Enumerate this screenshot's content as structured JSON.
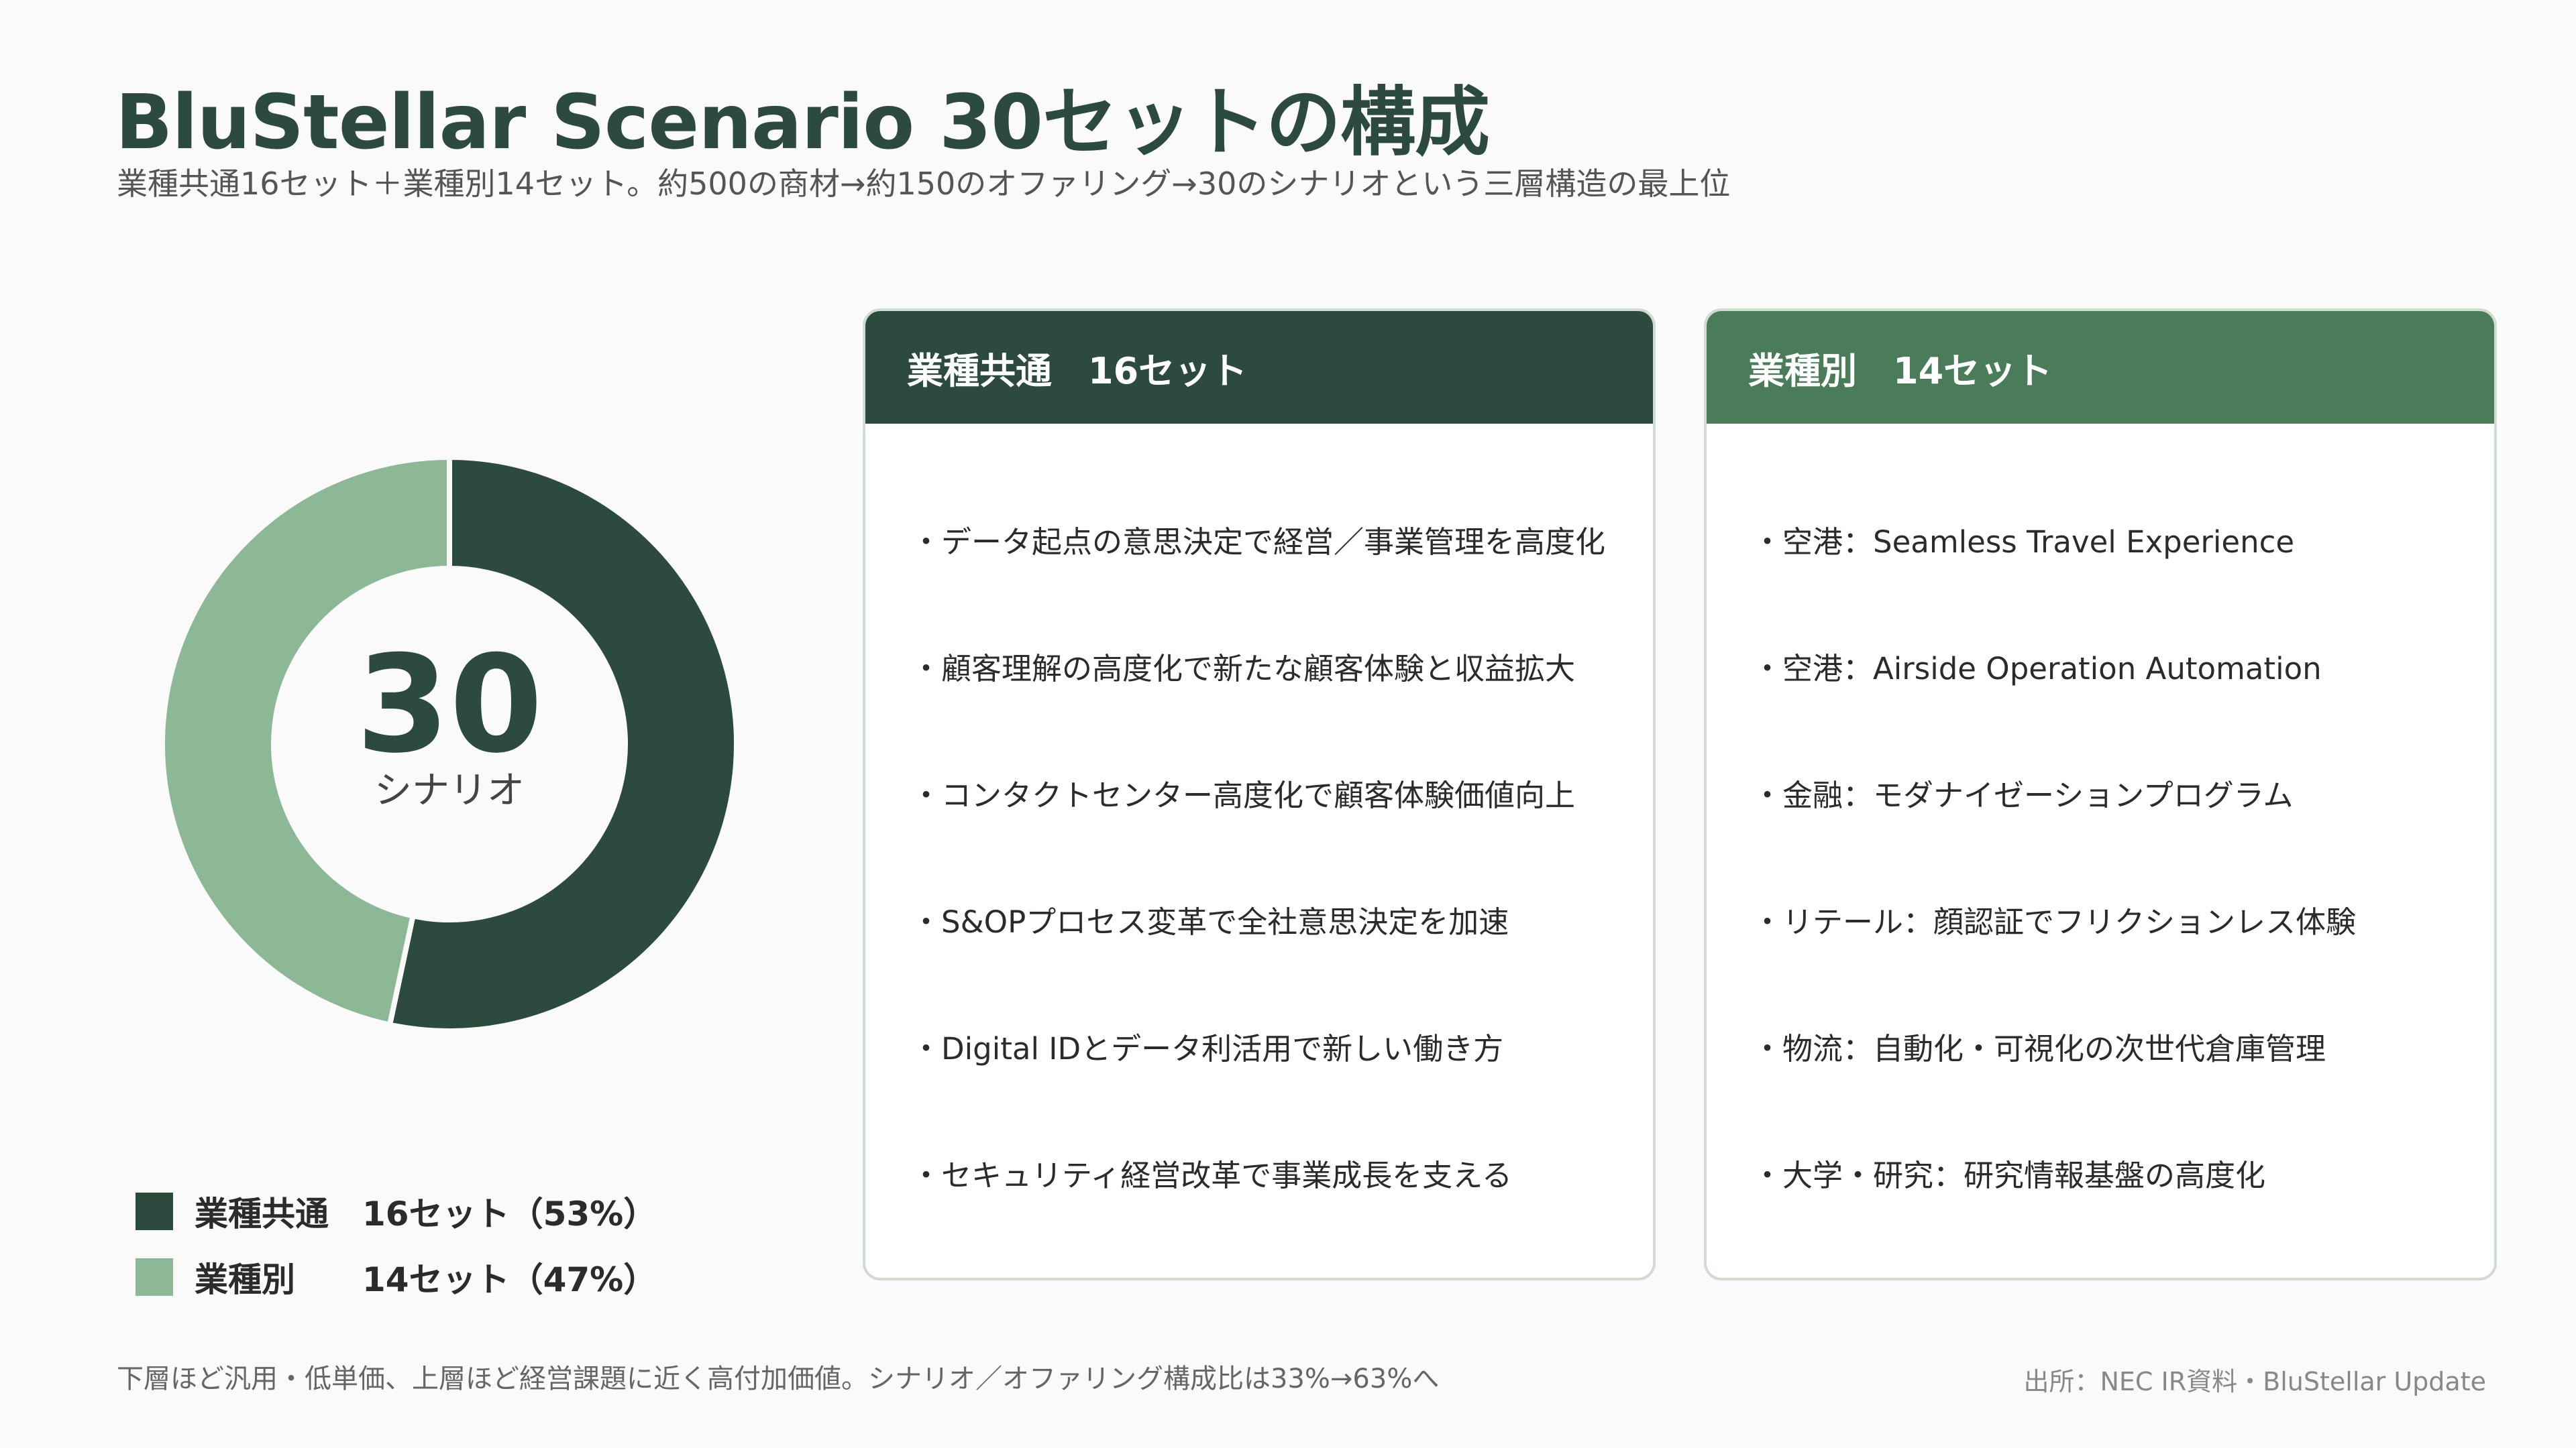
{
  "title": "BluStellar Scenario 30セットの構成",
  "subtitle": "業種共通16セット＋業種別14セット。約500の商材→約150のオファリング→30のシナリオという三層構造の最上位",
  "chart_data": {
    "type": "pie",
    "center_value": "30",
    "center_label": "シナリオ",
    "slices": [
      {
        "label": "業種共通",
        "value": 16,
        "percent": 53,
        "color": "#2d4a3e",
        "legend_value": "16セット（53%）"
      },
      {
        "label": "業種別",
        "value": 14,
        "percent": 47,
        "color": "#8db896",
        "legend_value": "14セット（47%）"
      }
    ],
    "total": 30,
    "legend_position": "bottom-left"
  },
  "cards": [
    {
      "header": "業種共通　16セット",
      "items": [
        "・データ起点の意思決定で経営／事業管理を高度化",
        "・顧客理解の高度化で新たな顧客体験と収益拡大",
        "・コンタクトセンター高度化で顧客体験価値向上",
        "・S&OPプロセス変革で全社意思決定を加速",
        "・Digital IDとデータ利活用で新しい働き方",
        "・セキュリティ経営改革で事業成長を支える"
      ]
    },
    {
      "header": "業種別　14セット",
      "items": [
        "・空港：Seamless Travel Experience",
        "・空港：Airside Operation Automation",
        "・金融：モダナイゼーションプログラム",
        "・リテール：顔認証でフリクションレス体験",
        "・物流：自動化・可視化の次世代倉庫管理",
        "・大学・研究：研究情報基盤の高度化"
      ]
    }
  ],
  "footnote": "下層ほど汎用・低単価、上層ほど経営課題に近く高付加価値。シナリオ／オファリング構成比は33%→63%へ",
  "source": "出所：NEC IR資料・BluStellar Update"
}
